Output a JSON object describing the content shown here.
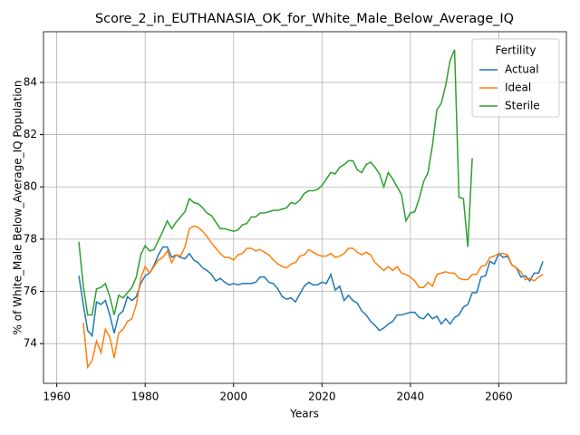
{
  "chart_data": {
    "type": "line",
    "title": "Score_2_in_EUTHANASIA_OK_for_White_Male_Below_Average_IQ",
    "xlabel": "Years",
    "ylabel": "% of White_Male Below_Average_IQ Population",
    "legend_title": "Fertility",
    "legend": "upper right",
    "grid": true,
    "xlim": [
      1957,
      2075.3
    ],
    "ylim": [
      72.48,
      85.94
    ],
    "xticks": [
      1960,
      1980,
      2000,
      2020,
      2040,
      2060
    ],
    "yticks": [
      74,
      76,
      78,
      80,
      82,
      84
    ],
    "x": [
      1965,
      1966,
      1967,
      1968,
      1969,
      1970,
      1971,
      1972,
      1973,
      1974,
      1975,
      1976,
      1977,
      1978,
      1979,
      1980,
      1981,
      1982,
      1983,
      1984,
      1985,
      1986,
      1987,
      1988,
      1989,
      1990,
      1991,
      1992,
      1993,
      1994,
      1995,
      1996,
      1997,
      1998,
      1999,
      2000,
      2001,
      2002,
      2003,
      2004,
      2005,
      2006,
      2007,
      2008,
      2009,
      2010,
      2011,
      2012,
      2013,
      2014,
      2015,
      2016,
      2017,
      2018,
      2019,
      2020,
      2021,
      2022,
      2023,
      2024,
      2025,
      2026,
      2027,
      2028,
      2029,
      2030,
      2031,
      2032,
      2033,
      2034,
      2035,
      2036,
      2037,
      2038,
      2039,
      2040,
      2041,
      2042,
      2043,
      2044,
      2045,
      2046,
      2047,
      2048,
      2049,
      2050,
      2051,
      2052,
      2053,
      2054,
      2055,
      2056,
      2057,
      2058,
      2059,
      2060,
      2061,
      2062,
      2063,
      2064,
      2065,
      2066,
      2067,
      2068,
      2069,
      2070
    ],
    "series": [
      {
        "name": "Actual",
        "color": "#1f77b4",
        "values": [
          76.6,
          75.5,
          74.5,
          74.3,
          75.6,
          75.5,
          75.65,
          75.1,
          74.4,
          75.1,
          75.25,
          75.8,
          75.65,
          75.8,
          76.3,
          76.6,
          76.7,
          77.0,
          77.4,
          77.7,
          77.7,
          77.3,
          77.4,
          77.3,
          77.25,
          77.45,
          77.2,
          77.1,
          76.9,
          76.8,
          76.65,
          76.4,
          76.5,
          76.35,
          76.25,
          76.3,
          76.25,
          76.3,
          76.3,
          76.3,
          76.35,
          76.55,
          76.55,
          76.35,
          76.3,
          76.1,
          75.8,
          75.7,
          75.75,
          75.6,
          75.9,
          76.2,
          76.35,
          76.25,
          76.25,
          76.35,
          76.3,
          76.65,
          76.05,
          76.2,
          75.65,
          75.85,
          75.65,
          75.55,
          75.25,
          75.1,
          74.85,
          74.7,
          74.5,
          74.6,
          74.75,
          74.85,
          75.1,
          75.1,
          75.15,
          75.2,
          75.2,
          75.0,
          74.95,
          75.15,
          74.95,
          75.05,
          74.75,
          74.95,
          74.75,
          75.0,
          75.1,
          75.4,
          75.5,
          75.95,
          75.95,
          76.55,
          76.6,
          77.15,
          77.05,
          77.45,
          77.3,
          77.35,
          77.0,
          76.9,
          76.55,
          76.6,
          76.4,
          76.7,
          76.7,
          77.15
        ]
      },
      {
        "name": "Ideal",
        "color": "#ff7f0e",
        "values": [
          null,
          74.8,
          73.1,
          73.35,
          74.1,
          73.65,
          74.55,
          74.25,
          73.45,
          74.4,
          74.55,
          74.85,
          74.95,
          75.5,
          76.5,
          76.95,
          76.7,
          76.95,
          77.2,
          77.3,
          77.55,
          77.1,
          77.4,
          77.35,
          77.7,
          78.4,
          78.5,
          78.45,
          78.3,
          78.1,
          77.85,
          77.65,
          77.45,
          77.3,
          77.3,
          77.2,
          77.4,
          77.45,
          77.65,
          77.65,
          77.55,
          77.6,
          77.5,
          77.4,
          77.2,
          77.05,
          76.95,
          76.9,
          77.05,
          77.1,
          77.35,
          77.4,
          77.6,
          77.5,
          77.4,
          77.35,
          77.35,
          77.45,
          77.3,
          77.35,
          77.45,
          77.65,
          77.65,
          77.5,
          77.4,
          77.5,
          77.4,
          77.1,
          76.95,
          76.8,
          76.95,
          76.8,
          76.95,
          76.7,
          76.65,
          76.55,
          76.4,
          76.15,
          76.15,
          76.35,
          76.2,
          76.65,
          76.7,
          76.75,
          76.7,
          76.7,
          76.5,
          76.45,
          76.45,
          76.65,
          76.65,
          76.95,
          77.0,
          77.3,
          77.35,
          77.45,
          77.45,
          77.4,
          77.0,
          76.9,
          76.75,
          76.45,
          76.5,
          76.4,
          76.55,
          76.65
        ]
      },
      {
        "name": "Sterile",
        "color": "#2ca02c",
        "values": [
          77.9,
          76.2,
          75.1,
          75.1,
          76.1,
          76.15,
          76.3,
          75.8,
          75.1,
          75.85,
          75.75,
          75.95,
          76.15,
          76.55,
          77.4,
          77.75,
          77.55,
          77.6,
          77.95,
          78.3,
          78.7,
          78.4,
          78.65,
          78.85,
          79.05,
          79.55,
          79.4,
          79.35,
          79.2,
          79.0,
          78.9,
          78.65,
          78.4,
          78.4,
          78.35,
          78.3,
          78.35,
          78.55,
          78.6,
          78.85,
          78.85,
          79.0,
          79.0,
          79.05,
          79.1,
          79.1,
          79.15,
          79.2,
          79.4,
          79.35,
          79.5,
          79.75,
          79.85,
          79.85,
          79.9,
          80.05,
          80.3,
          80.55,
          80.5,
          80.75,
          80.85,
          81.0,
          81.0,
          80.65,
          80.55,
          80.85,
          80.95,
          80.75,
          80.5,
          80.0,
          80.55,
          80.3,
          80.0,
          79.7,
          78.7,
          79.0,
          79.05,
          79.55,
          80.2,
          80.55,
          81.6,
          82.95,
          83.2,
          83.9,
          84.85,
          85.25,
          79.6,
          79.55,
          77.7,
          81.1,
          null,
          null,
          null,
          null,
          null,
          null,
          null,
          null,
          null,
          null,
          null,
          null,
          null,
          null,
          null,
          null
        ]
      }
    ]
  }
}
